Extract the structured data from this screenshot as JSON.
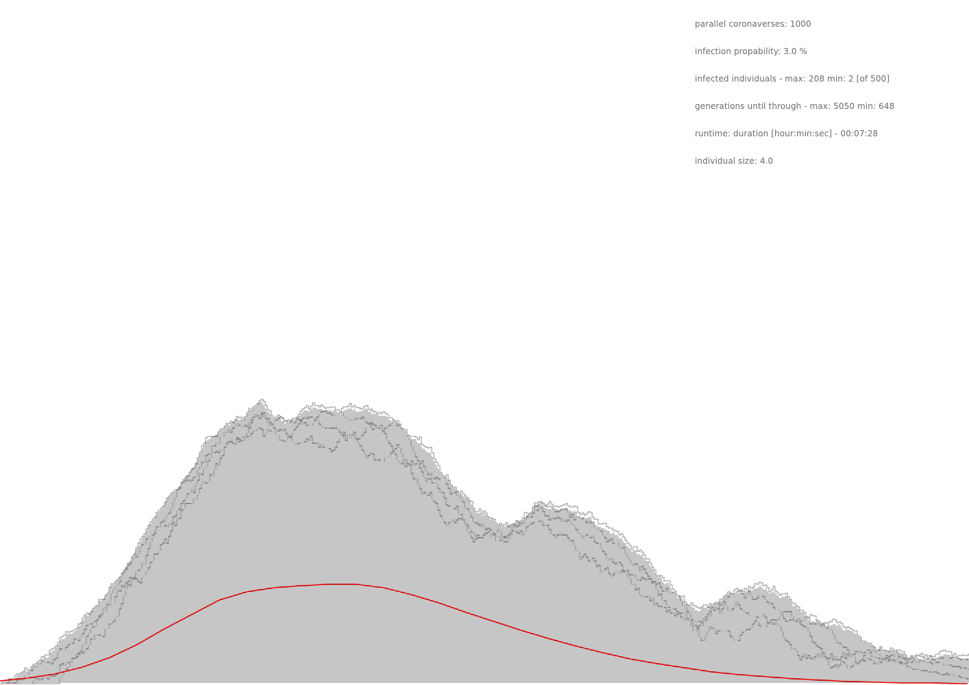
{
  "info": {
    "line1": "parallel coronaverses: 1000",
    "line2": "infection propability: 3.0 %",
    "line3": "infected individuals - max: 208 min: 2 [of 500]",
    "line4": "generations until through - max: 5050 min: 648",
    "line5": "runtime: duration [hour:min:sec] - 00:07:28",
    "line6": "individual size: 4.0"
  },
  "colors": {
    "background": "#ffffff",
    "text": "#6a6a6a",
    "simulation_lines": "#8c8c8c",
    "mean_curve": "#e00000"
  },
  "chart_data": {
    "type": "line",
    "title": "",
    "xlabel": "",
    "ylabel": "",
    "grid": false,
    "legend": "none",
    "series": [
      {
        "role": "envelope",
        "x": [
          0,
          40,
          80,
          120,
          160,
          200,
          240,
          280,
          320,
          360,
          380,
          400,
          420,
          460,
          500,
          540,
          580,
          620,
          660,
          700,
          740,
          780,
          820,
          860,
          900,
          940,
          980,
          1020,
          1060,
          1100,
          1140,
          1180,
          1220,
          1260,
          1300,
          1340,
          1380,
          1414
        ],
        "values": [
          4,
          18,
          46,
          88,
          140,
          200,
          262,
          318,
          376,
          396,
          412,
          392,
          386,
          398,
          394,
          394,
          384,
          338,
          298,
          252,
          236,
          262,
          250,
          232,
          208,
          180,
          142,
          104,
          132,
          134,
          126,
          104,
          82,
          70,
          56,
          40,
          34,
          28
        ]
      },
      {
        "role": "mean",
        "x": [
          0,
          40,
          80,
          120,
          160,
          200,
          240,
          280,
          320,
          360,
          400,
          440,
          480,
          500,
          520,
          560,
          600,
          640,
          680,
          720,
          760,
          800,
          840,
          880,
          920,
          960,
          1000,
          1040,
          1080,
          1120,
          1160,
          1200,
          1240,
          1280,
          1320,
          1360,
          1400,
          1414
        ],
        "values": [
          4,
          8,
          14,
          24,
          38,
          57,
          80,
          101,
          122,
          134,
          140,
          143,
          145,
          145,
          145,
          140,
          130,
          118,
          104,
          91,
          78,
          66,
          55,
          45,
          36,
          29,
          23,
          17,
          13,
          10,
          7,
          5,
          3,
          2,
          1,
          1,
          0,
          0
        ]
      }
    ]
  }
}
